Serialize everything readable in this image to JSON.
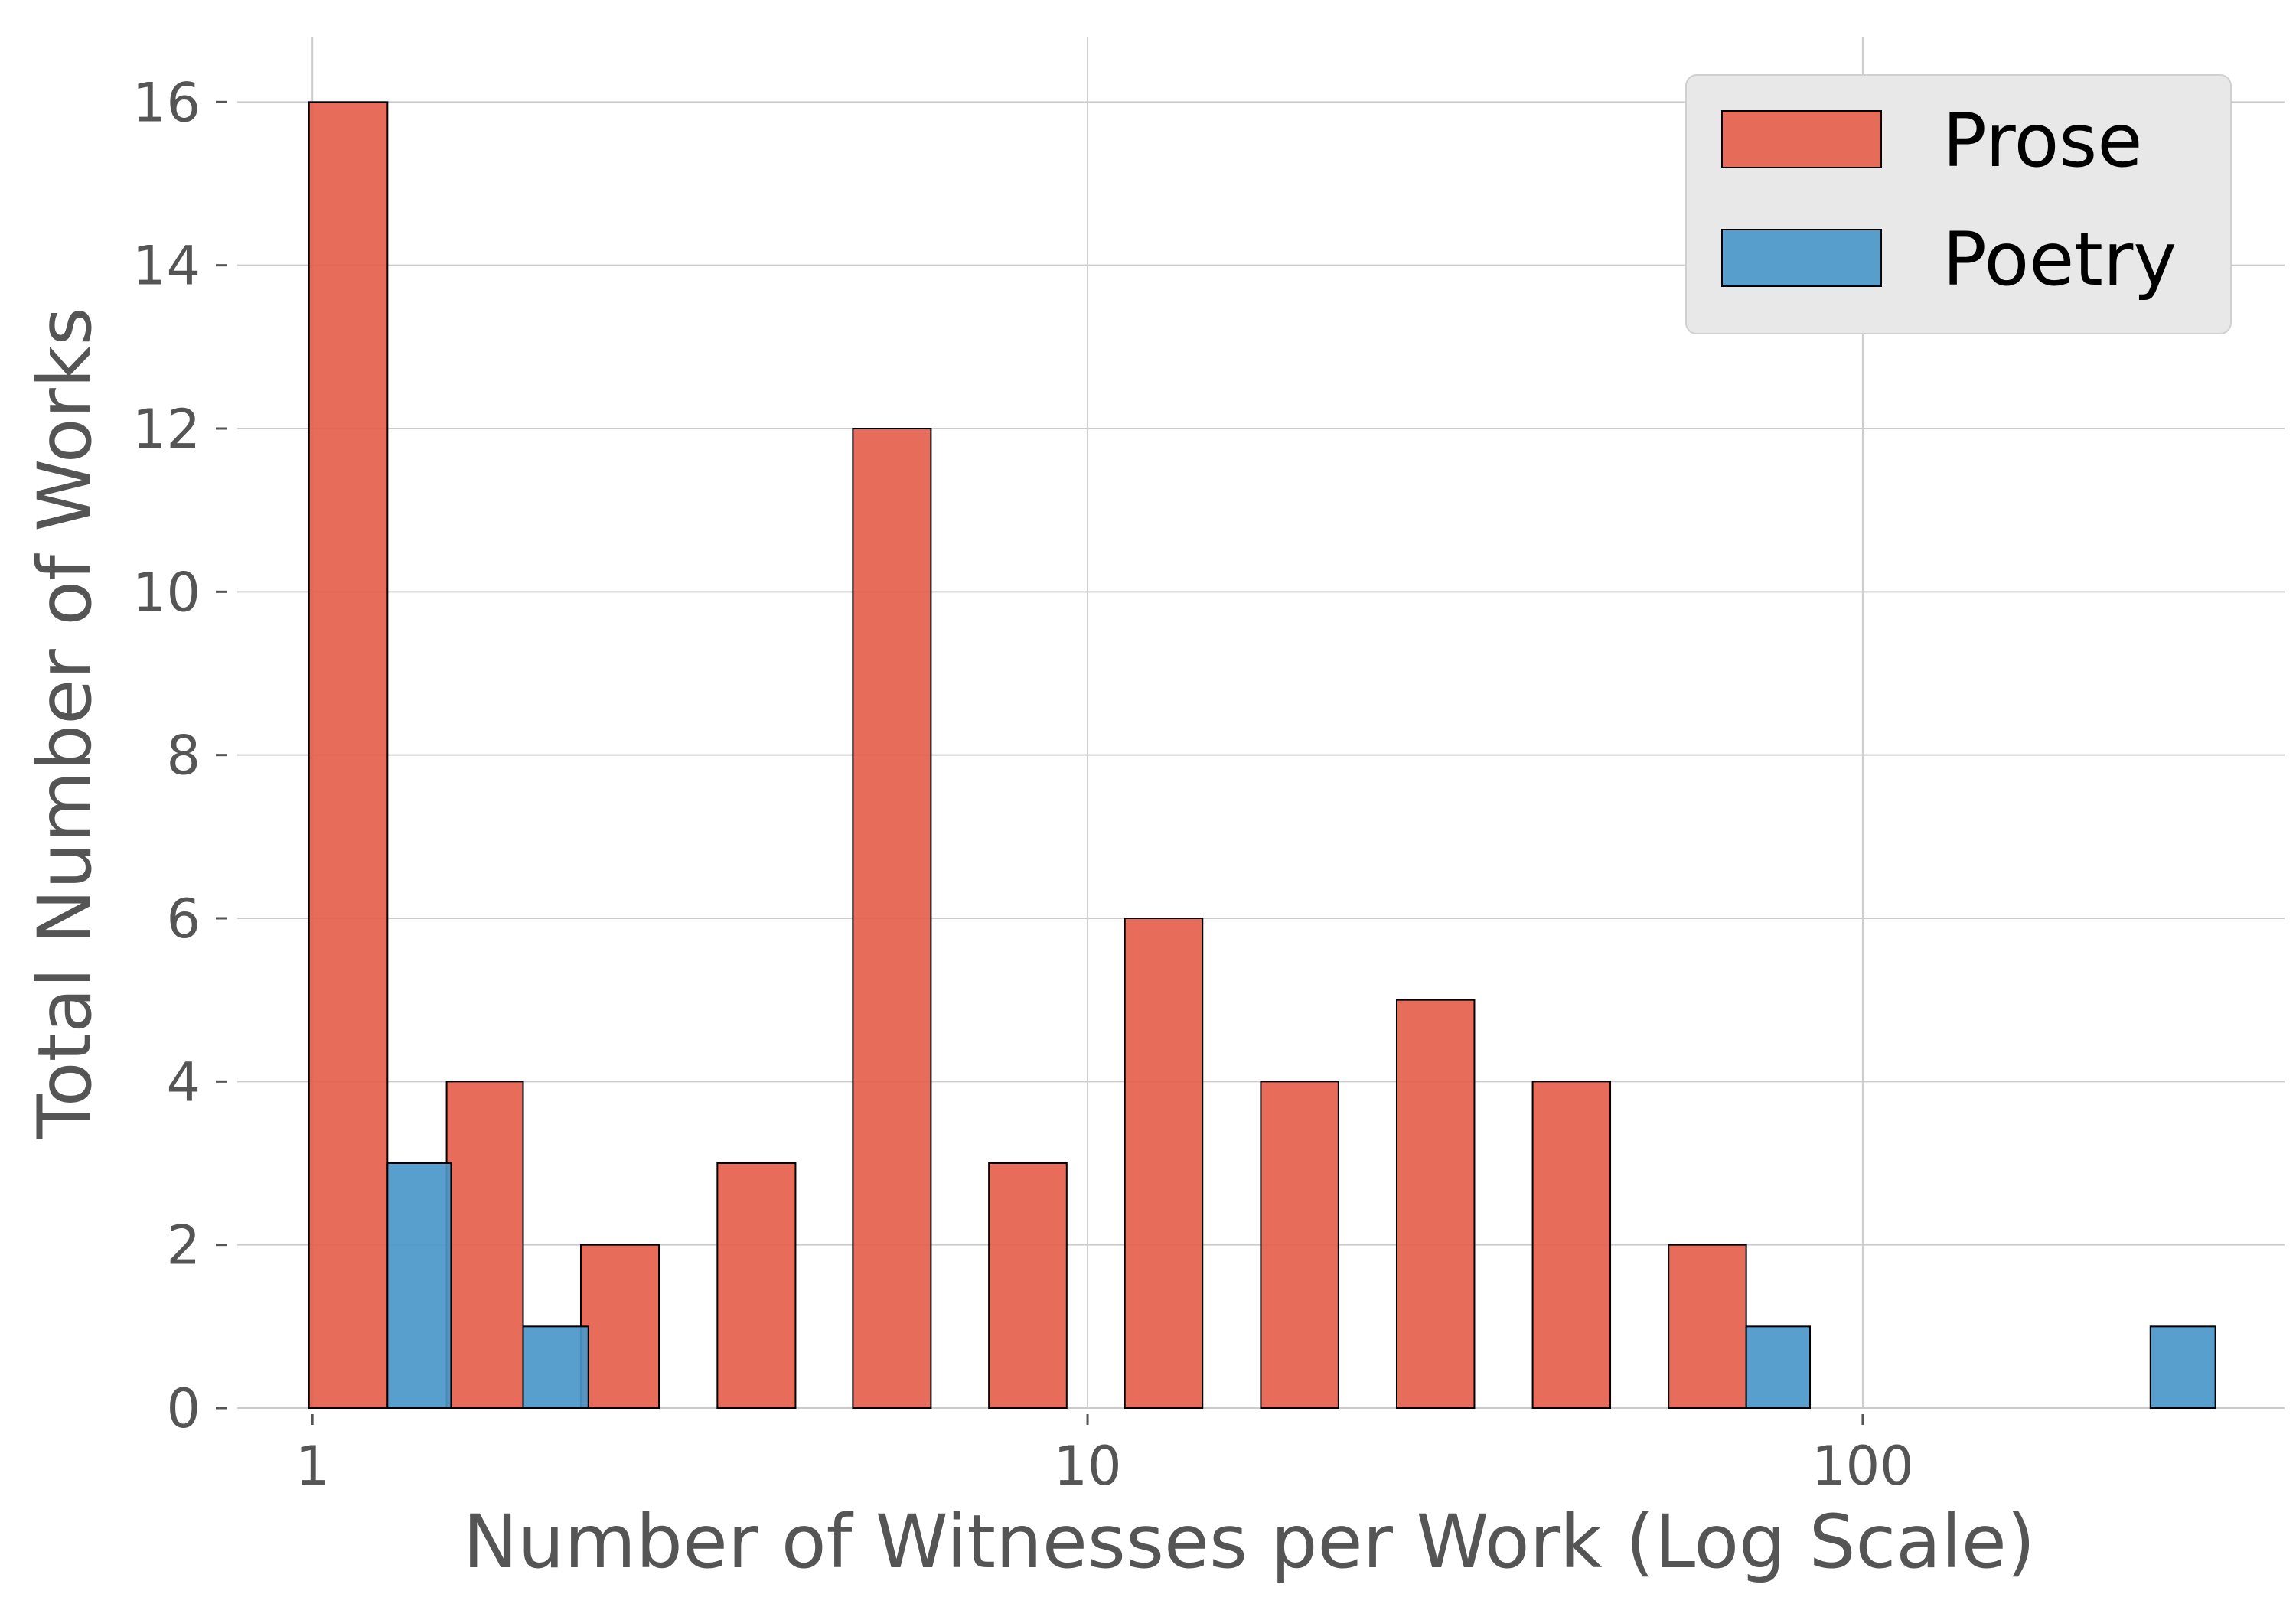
{
  "chart_data": {
    "type": "bar",
    "xscale": "log",
    "xlabel": "Number of Witnesses per Work (Log Scale)",
    "ylabel": "Total Number of Works",
    "xlim": [
      0.8,
      350
    ],
    "ylim": [
      0,
      16.8
    ],
    "xticks": [
      1,
      10,
      100
    ],
    "xtick_labels": [
      "1",
      "10",
      "100"
    ],
    "yticks": [
      0,
      2,
      4,
      6,
      8,
      10,
      12,
      14,
      16
    ],
    "grid": true,
    "legend_position": "top-right",
    "series": [
      {
        "name": "Prose",
        "color": "#e5604c",
        "bins": [
          {
            "x0": 0.99,
            "x1": 1.25,
            "value": 16
          },
          {
            "x0": 1.49,
            "x1": 1.87,
            "value": 4
          },
          {
            "x0": 2.22,
            "x1": 2.8,
            "value": 2
          },
          {
            "x0": 3.33,
            "x1": 4.2,
            "value": 3
          },
          {
            "x0": 4.98,
            "x1": 6.28,
            "value": 12
          },
          {
            "x0": 7.46,
            "x1": 9.4,
            "value": 3
          },
          {
            "x0": 11.17,
            "x1": 14.07,
            "value": 6
          },
          {
            "x0": 16.73,
            "x1": 21.07,
            "value": 4
          },
          {
            "x0": 25.05,
            "x1": 31.55,
            "value": 5
          },
          {
            "x0": 37.51,
            "x1": 47.24,
            "value": 4
          },
          {
            "x0": 56.17,
            "x1": 70.74,
            "value": 2
          }
        ]
      },
      {
        "name": "Poetry",
        "color": "#4b97c9",
        "bins": [
          {
            "x0": 1.25,
            "x1": 1.51,
            "value": 3
          },
          {
            "x0": 1.87,
            "x1": 2.27,
            "value": 1
          },
          {
            "x0": 70.74,
            "x1": 85.5,
            "value": 1
          },
          {
            "x0": 235.0,
            "x1": 285.0,
            "value": 1
          }
        ]
      }
    ]
  }
}
